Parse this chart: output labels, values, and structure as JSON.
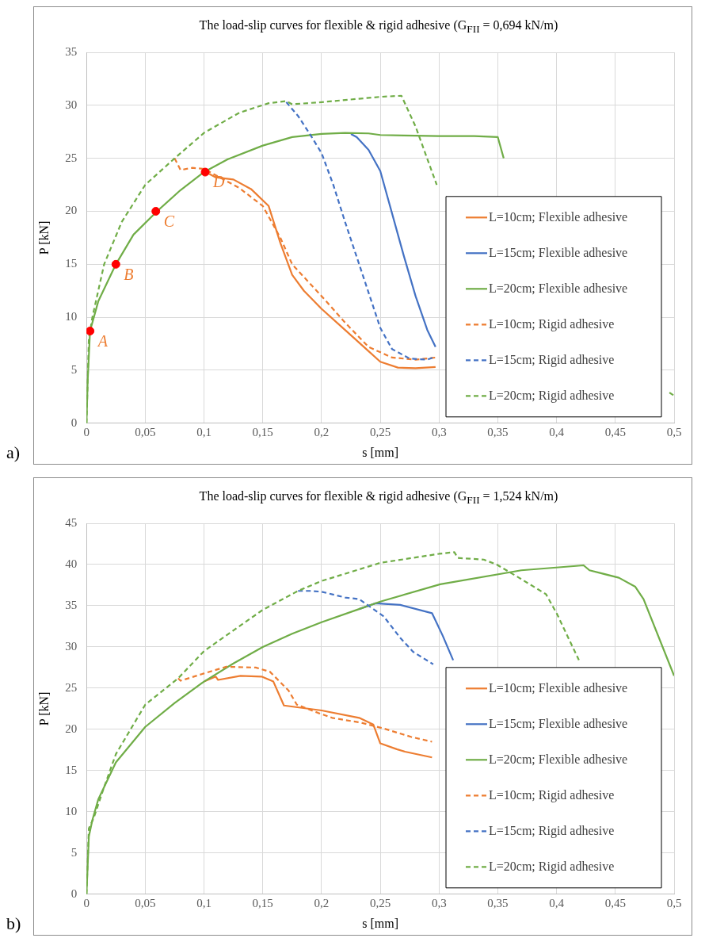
{
  "chart_data": [
    {
      "type": "line",
      "title": "The load-slip curves for flexible & rigid adhesive (G$_{FII}$ = 0,694 kN/m)",
      "xlabel": "s [mm]",
      "ylabel": "P [kN]",
      "xlim": [
        0,
        0.5
      ],
      "xticks": [
        0,
        {
          "value": 0.05,
          "label": "0,05"
        },
        {
          "value": 0.1,
          "label": "0,1"
        },
        {
          "value": 0.15,
          "label": "0,15"
        },
        {
          "value": 0.2,
          "label": "0,2"
        },
        {
          "value": 0.25,
          "label": "0,25"
        },
        {
          "value": 0.3,
          "label": "0,3"
        },
        {
          "value": 0.35,
          "label": "0,35"
        },
        {
          "value": 0.4,
          "label": "0,4"
        },
        {
          "value": 0.45,
          "label": "0,45"
        },
        {
          "value": 0.5,
          "label": "0,5"
        }
      ],
      "ylim": [
        0,
        35
      ],
      "yticks": [
        0,
        5,
        10,
        15,
        20,
        25,
        30,
        35
      ],
      "grid": true,
      "legend": "bottom right",
      "marker": "none",
      "series": [
        {
          "name": "L=10cm; Flexible adhesive",
          "color": "#ed7d31",
          "line_style": "solid",
          "x": [
            0.1,
            0.105,
            0.11,
            0.125,
            0.14,
            0.155,
            0.165,
            0.175,
            0.185,
            0.2,
            0.22,
            0.24,
            0.25,
            0.265,
            0.28,
            0.297
          ],
          "values": [
            23.7,
            23.5,
            23.2,
            23,
            22.1,
            20.5,
            17,
            14,
            12.5,
            10.8,
            8.8,
            6.8,
            5.8,
            5.25,
            5.2,
            5.3
          ]
        },
        {
          "name": "L=15cm; Flexible adhesive",
          "color": "#4472c4",
          "line_style": "solid",
          "x": [
            0.225,
            0.23,
            0.24,
            0.25,
            0.26,
            0.27,
            0.28,
            0.29,
            0.297
          ],
          "values": [
            27.3,
            27,
            25.8,
            23.8,
            19.8,
            15.8,
            12,
            8.8,
            7.2
          ]
        },
        {
          "name": "L=20cm; Flexible adhesive",
          "color": "#70ad47",
          "line_style": "solid",
          "x": [
            0,
            0.001,
            0.003,
            0.01,
            0.025,
            0.04,
            0.06,
            0.08,
            0.1,
            0.12,
            0.15,
            0.175,
            0.2,
            0.22,
            0.24,
            0.25,
            0.27,
            0.3,
            0.33,
            0.35,
            0.355
          ],
          "values": [
            0,
            4,
            8.7,
            11.5,
            15,
            17.8,
            20,
            22,
            23.7,
            24.9,
            26.2,
            27,
            27.3,
            27.4,
            27.35,
            27.2,
            27.15,
            27.1,
            27.1,
            27,
            25
          ]
        },
        {
          "name": "L=10cm; Rigid adhesive",
          "color": "#ed7d31",
          "line_style": "dashed",
          "x": [
            0.075,
            0.08,
            0.09,
            0.1,
            0.11,
            0.13,
            0.15,
            0.165,
            0.175,
            0.2,
            0.22,
            0.24,
            0.26,
            0.28,
            0.297
          ],
          "values": [
            25,
            23.9,
            24.1,
            24,
            23.4,
            22.2,
            20.5,
            17.5,
            15,
            12,
            9.5,
            7.2,
            6.2,
            6,
            6.2
          ]
        },
        {
          "name": "L=15cm; Rigid adhesive",
          "color": "#4472c4",
          "line_style": "dashed",
          "x": [
            0.17,
            0.18,
            0.19,
            0.2,
            0.21,
            0.22,
            0.235,
            0.25,
            0.26,
            0.275,
            0.29,
            0.295
          ],
          "values": [
            30.3,
            29,
            27.3,
            25.5,
            22.5,
            19,
            14,
            9,
            7,
            6.1,
            6,
            6.2
          ]
        },
        {
          "name": "L=20cm; Rigid adhesive",
          "color": "#70ad47",
          "line_style": "dashed",
          "x": [
            0,
            0.002,
            0.005,
            0.015,
            0.03,
            0.05,
            0.075,
            0.1,
            0.13,
            0.155,
            0.17,
            0.175,
            0.2,
            0.25,
            0.268,
            0.28,
            0.298,
            0.4,
            0.496,
            0.5
          ],
          "values": [
            0,
            8,
            10,
            15,
            19,
            22.5,
            25,
            27.4,
            29.3,
            30.2,
            30.4,
            30.1,
            30.3,
            30.8,
            30.9,
            28,
            22.5,
            null,
            2.9,
            2.6
          ]
        },
        {
          "type": "scatter",
          "color": "#ff0000",
          "marker": "circle",
          "x": [
            0.003,
            0.025,
            0.059,
            0.101
          ],
          "values": [
            8.7,
            15,
            20,
            23.7
          ]
        }
      ],
      "annotations": [
        "a)",
        {
          "text": "A",
          "x": 0.003,
          "y": 8.7
        },
        {
          "text": "B",
          "x": 0.025,
          "y": 15
        },
        {
          "text": "C",
          "x": 0.059,
          "y": 20
        },
        {
          "text": "D",
          "x": 0.101,
          "y": 23.7
        }
      ]
    },
    {
      "type": "line",
      "title": "The load-slip curves for flexible & rigid adhesive (G$_{FII}$ = 1,524 kN/m)",
      "xlabel": "s [mm]",
      "ylabel": "P [kN]",
      "xlim": [
        0,
        0.5
      ],
      "xticks": [
        0,
        {
          "value": 0.05,
          "label": "0,05"
        },
        {
          "value": 0.1,
          "label": "0,1"
        },
        {
          "value": 0.15,
          "label": "0,15"
        },
        {
          "value": 0.2,
          "label": "0,2"
        },
        {
          "value": 0.25,
          "label": "0,25"
        },
        {
          "value": 0.3,
          "label": "0,3"
        },
        {
          "value": 0.35,
          "label": "0,35"
        },
        {
          "value": 0.4,
          "label": "0,4"
        },
        {
          "value": 0.45,
          "label": "0,45"
        },
        {
          "value": 0.5,
          "label": "0,5"
        }
      ],
      "ylim": [
        0,
        45
      ],
      "yticks": [
        0,
        5,
        10,
        15,
        20,
        25,
        30,
        35,
        40,
        45
      ],
      "grid": true,
      "legend": "bottom right",
      "marker": "none",
      "series": [
        {
          "name": "L=10cm; Flexible adhesive",
          "color": "#ed7d31",
          "line_style": "solid",
          "x": [
            0.1,
            0.11,
            0.112,
            0.131,
            0.149,
            0.159,
            0.168,
            0.2,
            0.232,
            0.244,
            0.25,
            0.264,
            0.271,
            0.294
          ],
          "values": [
            25.8,
            26.4,
            26,
            26.5,
            26.4,
            25.8,
            22.9,
            22.3,
            21.4,
            20.6,
            18.3,
            17.6,
            17.3,
            16.6
          ]
        },
        {
          "name": "L=15cm; Flexible adhesive",
          "color": "#4472c4",
          "line_style": "solid",
          "x": [
            0.232,
            0.246,
            0.267,
            0.294,
            0.303,
            0.312
          ],
          "values": [
            34.6,
            35.3,
            35.1,
            34.1,
            31.4,
            28.4
          ]
        },
        {
          "name": "L=20cm; Flexible adhesive",
          "color": "#70ad47",
          "line_style": "solid",
          "x": [
            0,
            0.002,
            0.005,
            0.01,
            0.025,
            0.05,
            0.075,
            0.1,
            0.125,
            0.15,
            0.175,
            0.2,
            0.232,
            0.25,
            0.301,
            0.37,
            0.423,
            0.428,
            0.453,
            0.467,
            0.474,
            0.5
          ],
          "values": [
            0,
            7,
            9,
            11.5,
            16,
            20.3,
            23.2,
            25.8,
            28,
            30,
            31.6,
            33,
            34.6,
            35.5,
            37.6,
            39.3,
            39.9,
            39.3,
            38.4,
            37.3,
            35.8,
            26.5
          ]
        },
        {
          "name": "L=10cm; Rigid adhesive",
          "color": "#ed7d31",
          "line_style": "dashed",
          "x": [
            0.078,
            0.08,
            0.098,
            0.119,
            0.144,
            0.156,
            0.163,
            0.172,
            0.179,
            0.197,
            0.209,
            0.234,
            0.253,
            0.276,
            0.294
          ],
          "values": [
            26.2,
            25.9,
            26.7,
            27.6,
            27.5,
            27,
            26,
            24.7,
            23,
            22,
            21.4,
            20.8,
            20.1,
            19.1,
            18.5
          ]
        },
        {
          "name": "L=15cm; Rigid adhesive",
          "color": "#4472c4",
          "line_style": "dashed",
          "x": [
            0.18,
            0.19,
            0.2,
            0.22,
            0.232,
            0.253,
            0.267,
            0.278,
            0.295
          ],
          "values": [
            36.8,
            36.8,
            36.7,
            36,
            35.8,
            33.7,
            31.1,
            29.4,
            27.9
          ]
        },
        {
          "name": "L=20cm; Rigid adhesive",
          "color": "#70ad47",
          "line_style": "dashed",
          "x": [
            0,
            0.002,
            0.006,
            0.015,
            0.025,
            0.05,
            0.078,
            0.1,
            0.15,
            0.18,
            0.2,
            0.25,
            0.3,
            0.313,
            0.316,
            0.338,
            0.349,
            0.368,
            0.391,
            0.4,
            0.419
          ],
          "values": [
            0,
            8,
            9.2,
            13,
            17,
            23,
            26.2,
            29.5,
            34.5,
            36.8,
            38,
            40.2,
            41.3,
            41.5,
            40.8,
            40.6,
            40,
            38.4,
            36.4,
            34.1,
            28.4
          ]
        }
      ],
      "annotations": [
        "b)"
      ]
    }
  ]
}
